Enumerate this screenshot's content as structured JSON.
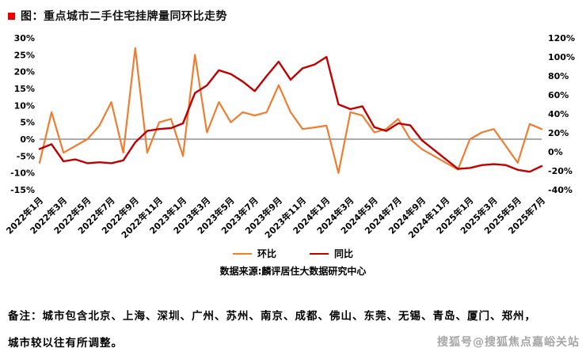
{
  "title": "图：重点城市二手住宅挂牌量同环比走势",
  "chart_data": {
    "type": "line",
    "title": "重点城市二手住宅挂牌量同环比走势",
    "months": [
      "2022年1月",
      "2022年2月",
      "2022年3月",
      "2022年4月",
      "2022年5月",
      "2022年6月",
      "2022年7月",
      "2022年8月",
      "2022年9月",
      "2022年10月",
      "2022年11月",
      "2022年12月",
      "2023年1月",
      "2023年2月",
      "2023年3月",
      "2023年4月",
      "2023年5月",
      "2023年6月",
      "2023年7月",
      "2023年8月",
      "2023年9月",
      "2023年10月",
      "2023年11月",
      "2023年12月",
      "2024年1月",
      "2024年2月",
      "2024年3月",
      "2024年4月",
      "2024年5月",
      "2024年6月",
      "2024年7月",
      "2024年8月",
      "2024年9月",
      "2024年10月",
      "2024年11月",
      "2024年12月",
      "2025年1月",
      "2025年2月",
      "2025年3月",
      "2025年4月",
      "2025年5月",
      "2025年6月",
      "2025年7月"
    ],
    "x_tick_labels": [
      "2022年1月",
      "2022年3月",
      "2022年5月",
      "2022年7月",
      "2022年9月",
      "2022年11月",
      "2023年1月",
      "2023年3月",
      "2023年5月",
      "2023年7月",
      "2023年9月",
      "2023年11月",
      "2024年1月",
      "2024年3月",
      "2024年5月",
      "2024年7月",
      "2024年9月",
      "2024年11月",
      "2025年1月",
      "2025年3月",
      "2025年5月",
      "2025年7月"
    ],
    "x_tick_step": 2,
    "left_axis": {
      "min": -15,
      "max": 30,
      "unit": "%",
      "tick_values": [
        30,
        25,
        20,
        15,
        10,
        5,
        0,
        -5,
        -10,
        -15
      ]
    },
    "right_axis": {
      "min": -40,
      "max": 120,
      "unit": "%",
      "tick_values": [
        120,
        100,
        80,
        60,
        40,
        20,
        0,
        -20,
        -40
      ]
    },
    "series": [
      {
        "name": "环比",
        "axis": "left",
        "color": "#ED7D31",
        "values": [
          -7,
          8,
          -4,
          -2,
          0,
          4,
          11,
          -4,
          27,
          -4,
          5,
          6,
          -5,
          25,
          2,
          11,
          5,
          8,
          7,
          8,
          16,
          8,
          3,
          3.5,
          4,
          -10,
          8,
          7,
          2,
          3,
          6,
          0,
          -3,
          -5,
          -7,
          -9,
          0,
          2,
          3,
          -2,
          -7,
          4.5,
          3
        ]
      },
      {
        "name": "同比",
        "axis": "right",
        "color": "#C00000",
        "values": [
          3,
          8,
          -10,
          -8,
          -12,
          -11,
          -12,
          -9,
          10,
          22,
          24,
          25,
          30,
          62,
          70,
          86,
          82,
          74,
          64,
          80,
          95,
          76,
          88,
          92,
          100,
          50,
          45,
          48,
          26,
          22,
          30,
          28,
          12,
          2,
          -8,
          -18,
          -17,
          -14,
          -13,
          -14,
          -19,
          -21,
          -15
        ]
      }
    ],
    "legend_position": "bottom",
    "grid": false,
    "source": "数据来源:麟评居住大数据研究中心"
  },
  "note": {
    "line1": "备注：城市包含北京、上海、深圳、广州、苏州、南京、成都、佛山、东莞、无锡、青岛、厦门、郑州，",
    "line2": "城市较以往有所调整。"
  },
  "watermark": "搜狐号@搜狐焦点嘉峪关站",
  "colors": {
    "mom": "#ED7D31",
    "yoy": "#C00000",
    "bullet": "#E60000",
    "zero_line": "#595959",
    "watermark_text": "#A6A6A6"
  }
}
